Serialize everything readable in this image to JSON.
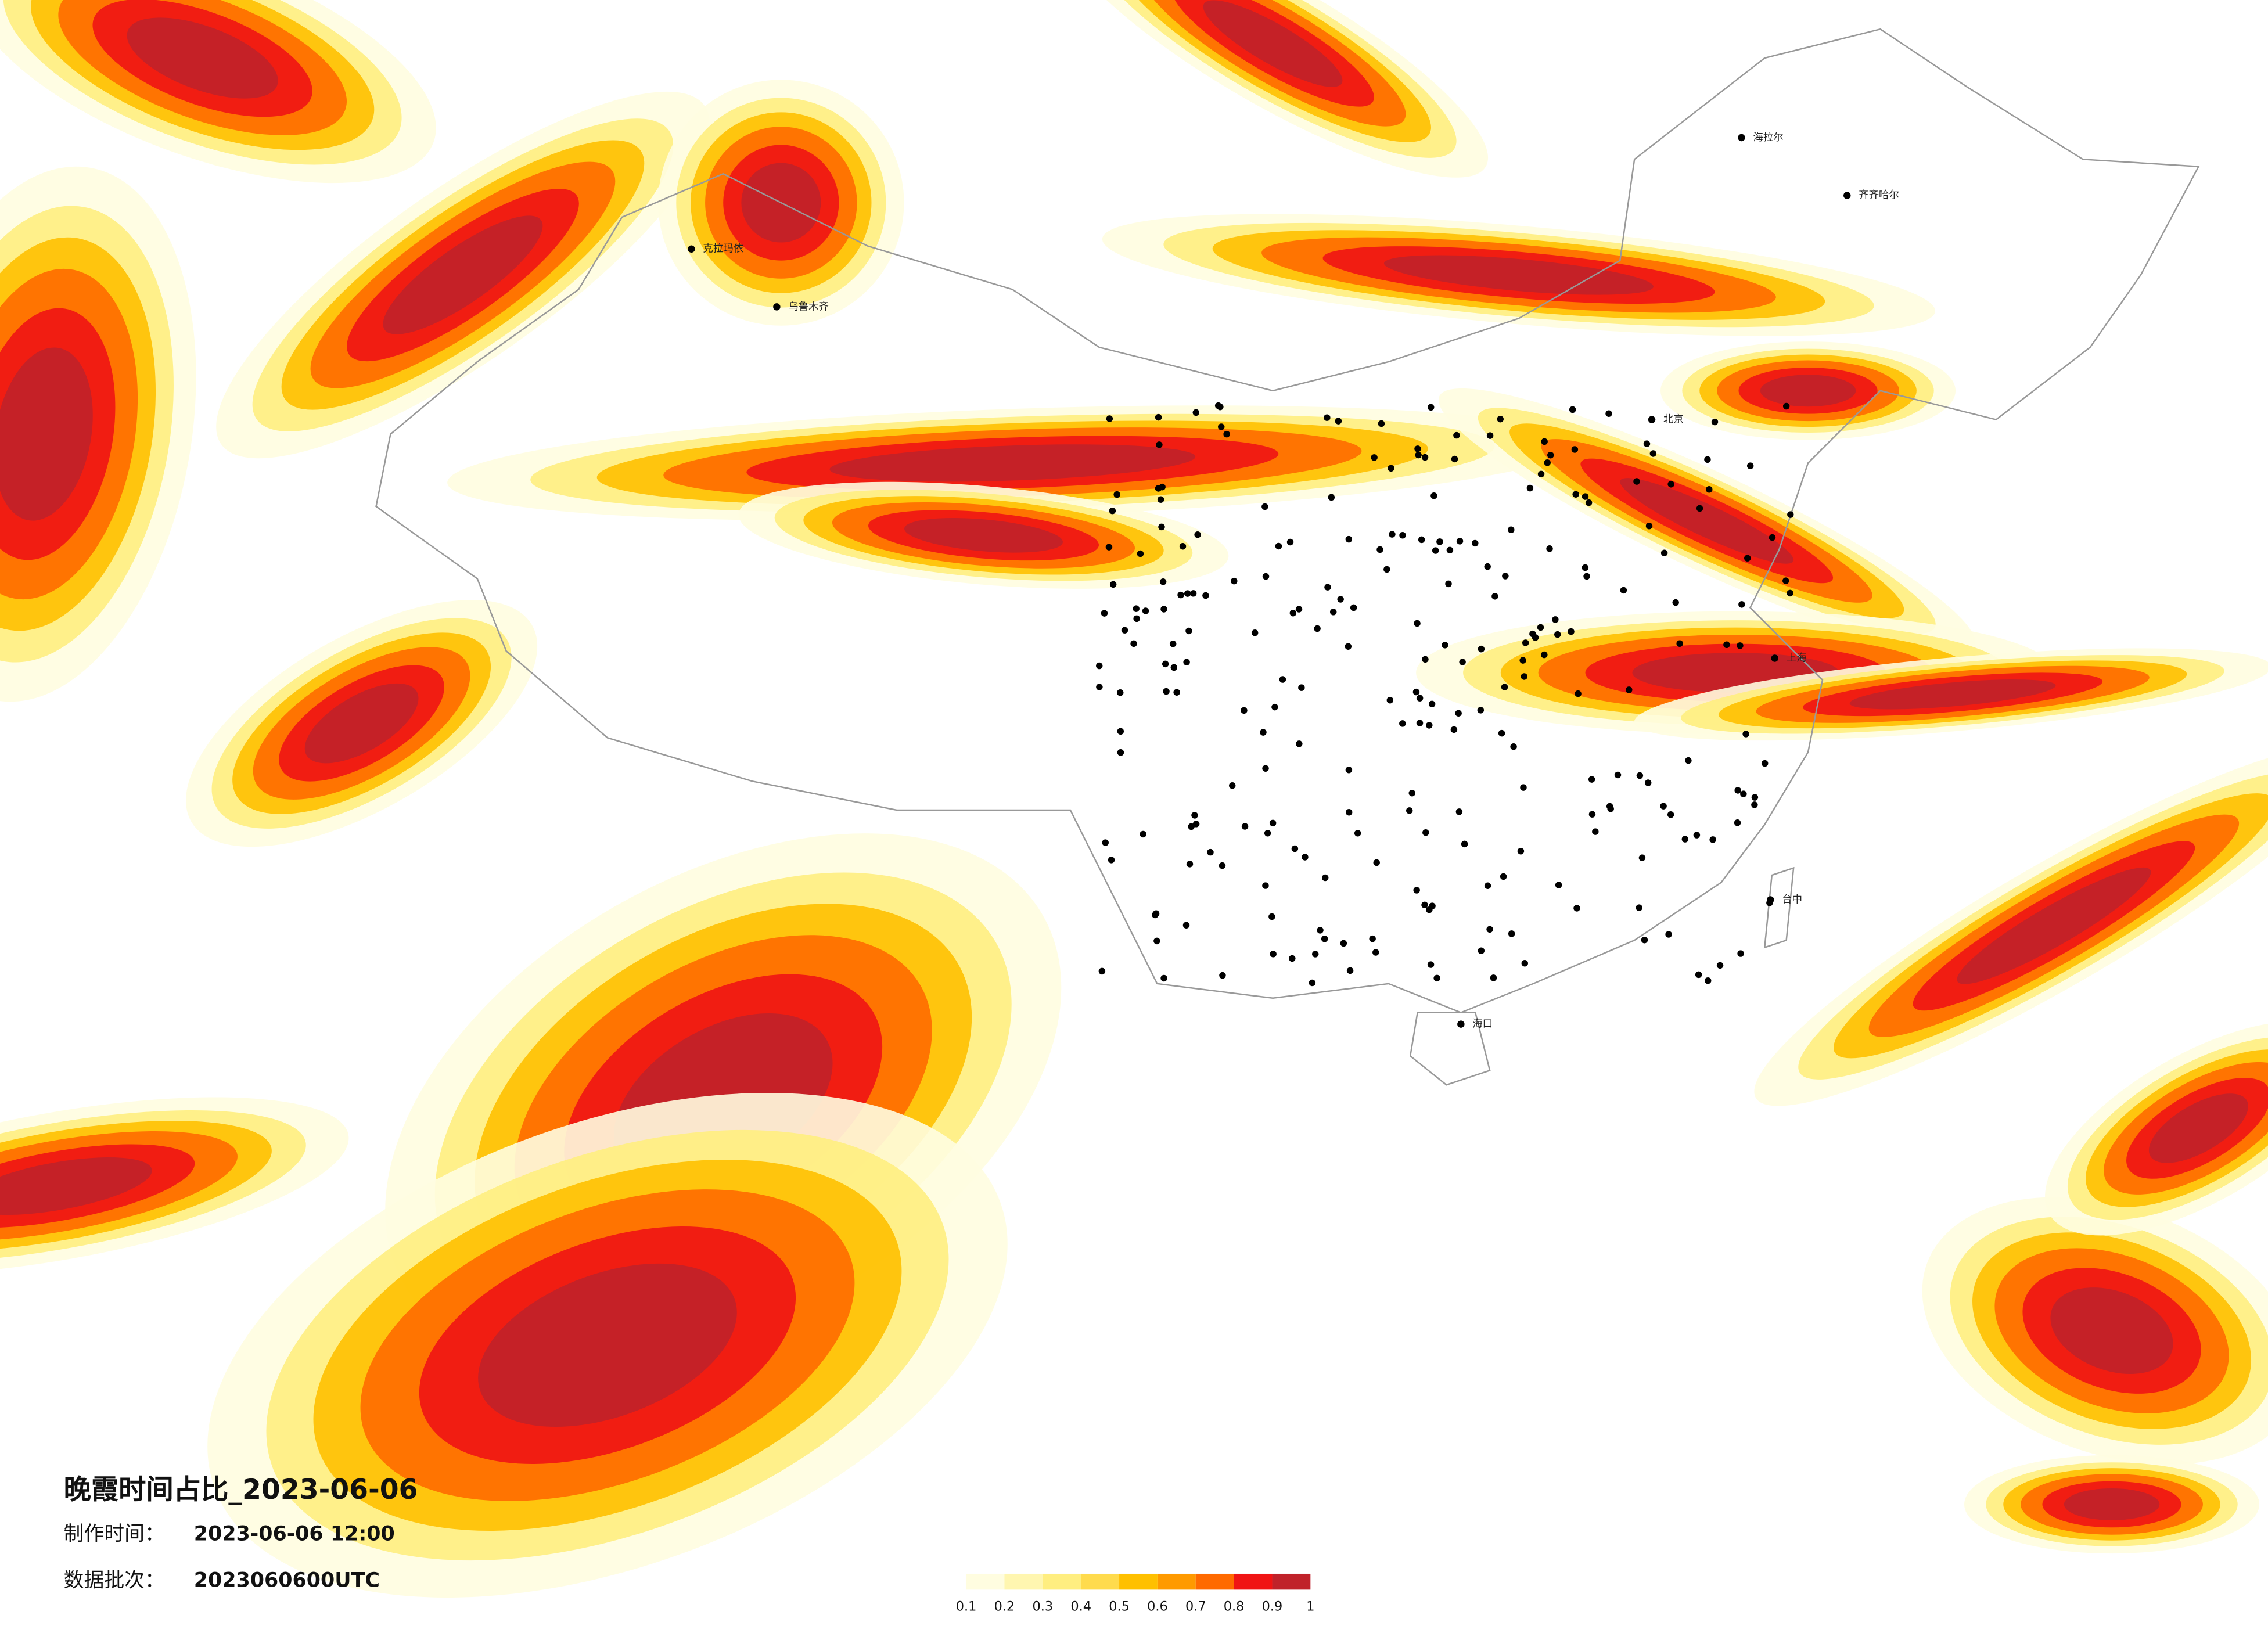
{
  "title": "晚霞时间占比_2023-06-06",
  "meta": [
    {
      "label": "制作时间：",
      "value": "2023-06-06 12:00"
    },
    {
      "label": "数据批次：",
      "value": "2023060600UTC"
    }
  ],
  "cities": [
    "海拉尔",
    "齐齐哈尔",
    "克拉玛依",
    "乌鲁木齐",
    "北京",
    "上海",
    "海口",
    "台中"
  ],
  "legend": {
    "colors": [
      "#fffde0",
      "#fff6b0",
      "#ffee80",
      "#ffdb4d",
      "#ffc000",
      "#ff9a00",
      "#ff6a00",
      "#f01414",
      "#c0222a"
    ],
    "ticks": [
      0.1,
      0.2,
      0.3,
      0.4,
      0.5,
      0.6,
      0.7,
      0.8,
      0.9,
      1
    ]
  }
}
